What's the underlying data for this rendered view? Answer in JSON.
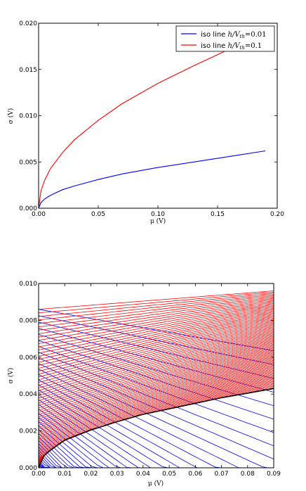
{
  "chart_data": [
    {
      "type": "line",
      "xlabel": "μ (V)",
      "ylabel": "σ (V)",
      "xlim": [
        0,
        0.2
      ],
      "ylim": [
        0,
        0.02
      ],
      "xticks": [
        "0.00",
        "0.05",
        "0.10",
        "0.15",
        "0.20"
      ],
      "yticks": [
        "0.000",
        "0.005",
        "0.010",
        "0.015",
        "0.020"
      ],
      "grid": false,
      "legend_position": "top-right",
      "series": [
        {
          "name": "iso line h/V_th=0.01",
          "color": "#0000ff",
          "x": [
            0,
            0.002,
            0.005,
            0.01,
            0.02,
            0.03,
            0.05,
            0.07,
            0.1,
            0.13,
            0.16,
            0.19
          ],
          "y": [
            0,
            0.0006,
            0.001,
            0.0014,
            0.002,
            0.0024,
            0.0031,
            0.0037,
            0.0044,
            0.005,
            0.0056,
            0.0062
          ]
        },
        {
          "name": "iso line h/V_th=0.1",
          "color": "#ff0000",
          "x": [
            0,
            0.002,
            0.005,
            0.01,
            0.02,
            0.03,
            0.05,
            0.07,
            0.1,
            0.13,
            0.16
          ],
          "y": [
            0,
            0.0019,
            0.003,
            0.0043,
            0.006,
            0.0074,
            0.0095,
            0.0113,
            0.0135,
            0.0154,
            0.0172
          ]
        }
      ]
    },
    {
      "type": "line",
      "xlabel": "μ (V)",
      "ylabel": "σ (V)",
      "xlim": [
        0,
        0.09
      ],
      "ylim": [
        0,
        0.01
      ],
      "xticks": [
        "0.00",
        "0.01",
        "0.02",
        "0.03",
        "0.04",
        "0.05",
        "0.06",
        "0.07",
        "0.08",
        "0.09"
      ],
      "yticks": [
        "0.000",
        "0.002",
        "0.004",
        "0.006",
        "0.008",
        "0.010"
      ],
      "grid": false,
      "curve_families": [
        {
          "color": "#ff0000",
          "count": 80,
          "sigma_at_0_range": [
            0,
            0.0086
          ],
          "sigma_at_0_09_range": [
            0.0043,
            0.0096
          ]
        },
        {
          "color": "#0000ff",
          "count": 40,
          "start_sigma_range": [
            0,
            0.0086
          ],
          "slope_at_top": -0.025,
          "slope_at_bottom": -0.2
        }
      ],
      "envelope": {
        "color": "#000000",
        "x": [
          0,
          0.002,
          0.005,
          0.01,
          0.02,
          0.03,
          0.04,
          0.05,
          0.06,
          0.07,
          0.08,
          0.09
        ],
        "y": [
          0,
          0.00065,
          0.001,
          0.0015,
          0.00205,
          0.0025,
          0.0029,
          0.0032,
          0.0035,
          0.0038,
          0.00405,
          0.0043
        ]
      }
    }
  ]
}
